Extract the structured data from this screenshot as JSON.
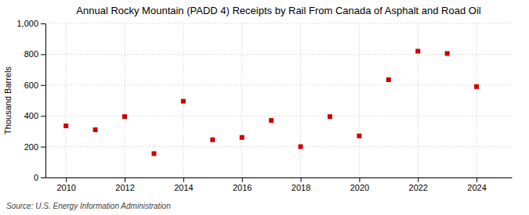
{
  "chart_data": {
    "type": "scatter",
    "title": "Annual Rocky Mountain (PADD 4) Receipts by Rail From Canada of Asphalt and Road Oil",
    "y_label": "Thousand Barrels",
    "annotations": [
      "Source: U.S. Energy Information Administration"
    ],
    "x": [
      2010,
      2011,
      2012,
      2013,
      2014,
      2015,
      2016,
      2017,
      2018,
      2019,
      2020,
      2021,
      2022,
      2023,
      2024
    ],
    "values": [
      335,
      310,
      395,
      155,
      495,
      245,
      260,
      370,
      200,
      395,
      270,
      635,
      820,
      805,
      590
    ],
    "color": "#cc0000",
    "marker": "square",
    "xlim": [
      2009.3,
      2025.2
    ],
    "xticks": [
      2010,
      2012,
      2014,
      2016,
      2018,
      2020,
      2022,
      2024
    ],
    "ylim": [
      0,
      1000
    ],
    "yticks": [
      0,
      200,
      400,
      600,
      800,
      {
        "value": 1000,
        "label": "1,000"
      }
    ],
    "grid": true
  }
}
